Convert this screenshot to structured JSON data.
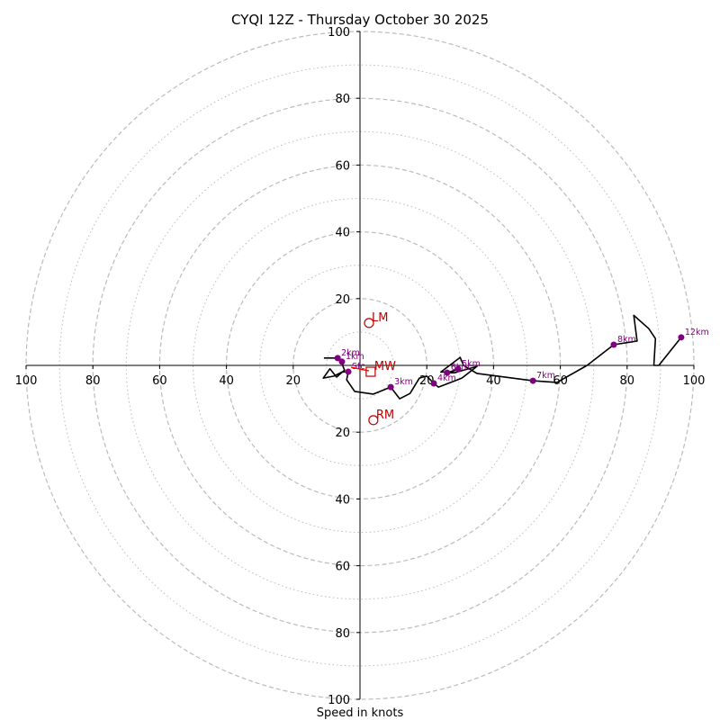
{
  "chart_data": {
    "type": "hodograph",
    "title": "CYQI 12Z - Thursday October 30 2025",
    "xlabel": "Speed in knots",
    "units": "knots",
    "max_speed": 100,
    "rings_major": [
      20,
      40,
      60,
      80,
      100
    ],
    "rings_minor": [
      10,
      30,
      50,
      70,
      90
    ],
    "x_tick_labels": [
      "100",
      "80",
      "60",
      "40",
      "20",
      "20",
      "40",
      "60",
      "80",
      "100"
    ],
    "x_tick_values": [
      -100,
      -80,
      -60,
      -40,
      -20,
      20,
      40,
      60,
      80,
      100
    ],
    "y_tick_labels": [
      "100",
      "80",
      "60",
      "40",
      "20",
      "20",
      "40",
      "60",
      "80",
      "100"
    ],
    "y_tick_values": [
      100,
      80,
      60,
      40,
      20,
      -20,
      -40,
      -60,
      -80,
      -100
    ],
    "trace_uv": [
      [
        -10.8,
        2.2
      ],
      [
        -7.3,
        2.2
      ],
      [
        -6.7,
        2.2
      ],
      [
        -5.4,
        1.1
      ],
      [
        -5.0,
        -0.5
      ],
      [
        -4.6,
        -1.4
      ],
      [
        -7.0,
        -3.5
      ],
      [
        -9.0,
        -1.0
      ],
      [
        -11.0,
        -3.8
      ],
      [
        -7.8,
        -3.2
      ],
      [
        -5.4,
        -2.0
      ],
      [
        -3.8,
        -1.9
      ],
      [
        -3.5,
        -1.9
      ],
      [
        -4.0,
        -4.3
      ],
      [
        -1.6,
        -7.8
      ],
      [
        4.0,
        -8.6
      ],
      [
        9.2,
        -6.5
      ],
      [
        11.9,
        -10.0
      ],
      [
        15.0,
        -8.4
      ],
      [
        17.8,
        -3.8
      ],
      [
        20.0,
        -3.2
      ],
      [
        22.1,
        -5.4
      ],
      [
        23.5,
        -6.5
      ],
      [
        30.5,
        -3.8
      ],
      [
        35.0,
        -0.3
      ],
      [
        28.3,
        -2.2
      ],
      [
        26.1,
        -2.2
      ],
      [
        29.4,
        -1.1
      ],
      [
        27.5,
        -1.9
      ],
      [
        24.2,
        -2.0
      ],
      [
        30.0,
        2.4
      ],
      [
        31.0,
        0.0
      ],
      [
        35.0,
        -2.4
      ],
      [
        51.8,
        -4.6
      ],
      [
        59.0,
        -5.1
      ],
      [
        68.0,
        0.0
      ],
      [
        76.0,
        6.2
      ],
      [
        83.0,
        7.3
      ],
      [
        82.0,
        15.0
      ],
      [
        86.5,
        11.0
      ],
      [
        88.5,
        8.0
      ],
      [
        88.0,
        0.0
      ],
      [
        89.5,
        0.0
      ],
      [
        96.2,
        8.4
      ]
    ],
    "height_markers": [
      {
        "label": "Sfc",
        "u": -3.5,
        "v": -1.9
      },
      {
        "label": "1km",
        "u": -5.4,
        "v": 1.1
      },
      {
        "label": "2km",
        "u": -6.7,
        "v": 2.2
      },
      {
        "label": "3km",
        "u": 9.2,
        "v": -6.5
      },
      {
        "label": "4km",
        "u": 22.1,
        "v": -5.4
      },
      {
        "label": "5km",
        "u": 29.4,
        "v": -1.1
      },
      {
        "label": "6km",
        "u": 26.1,
        "v": -2.2
      },
      {
        "label": "7km",
        "u": 51.8,
        "v": -4.6
      },
      {
        "label": "8km",
        "u": 76.0,
        "v": 6.2
      },
      {
        "label": "12km",
        "u": 96.2,
        "v": 8.4
      }
    ],
    "storm_motion": {
      "LM": {
        "label": "LM",
        "u": 2.7,
        "v": 12.7
      },
      "RM": {
        "label": "RM",
        "u": 4.0,
        "v": -16.4
      },
      "MW": {
        "label": "MW",
        "u": 3.2,
        "v": -1.9
      }
    },
    "colors": {
      "trace": "#000000",
      "markers": "#800080",
      "storm_motion": "#c00000",
      "shear_arrow": "#ff0000",
      "rings": "#bbbbbb"
    }
  }
}
